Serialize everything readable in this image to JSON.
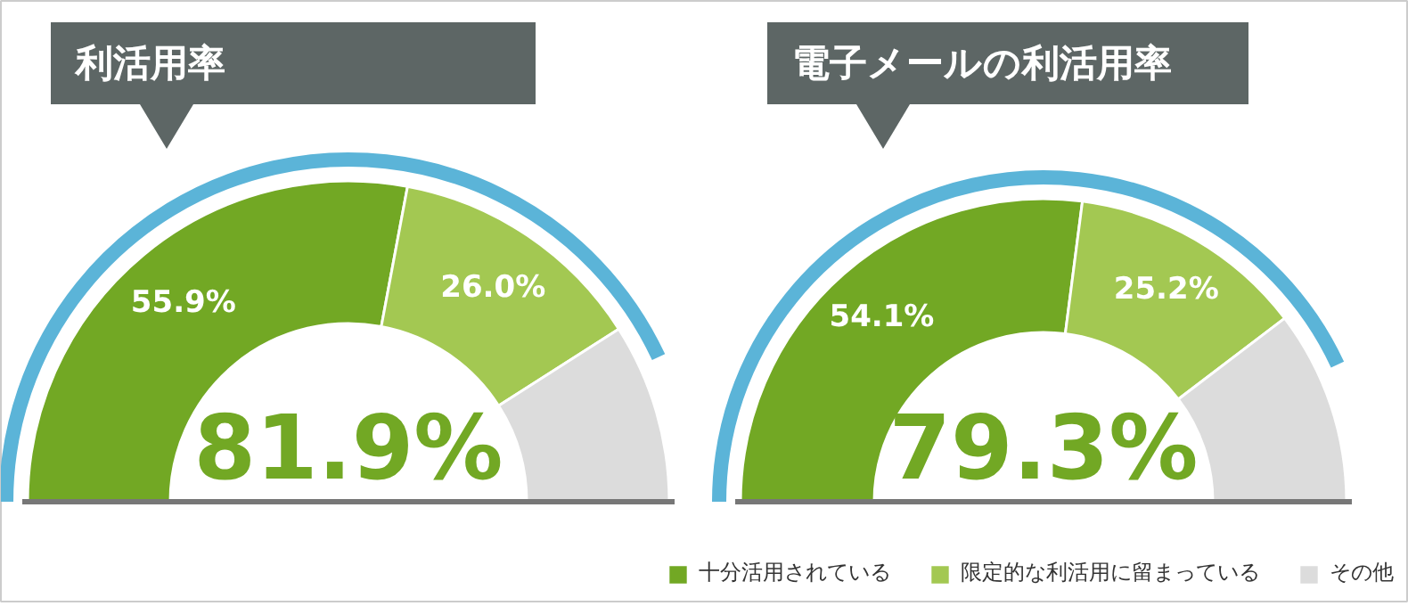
{
  "chart_data": [
    {
      "type": "donut",
      "title": "利活用率",
      "categories": [
        "十分活用されている",
        "限定的な利活用に留まっている",
        "その他"
      ],
      "values": [
        55.9,
        26.0,
        18.1
      ],
      "colors": [
        "#72a824",
        "#a3c852",
        "#dcdcdc"
      ],
      "value_labels": [
        "55.9%",
        "26.0%",
        null
      ],
      "annotations": [
        "81.9%"
      ],
      "legend": "bottom right"
    },
    {
      "type": "donut",
      "title": "電子メールの利活用率",
      "categories": [
        null,
        null,
        null
      ],
      "values": [
        54.1,
        25.2,
        20.7
      ],
      "colors": [
        "#72a824",
        "#a3c852",
        "#dcdcdc"
      ],
      "value_labels": [
        "54.1%",
        "25.2%",
        null
      ],
      "annotations": [
        "79.3%"
      ],
      "legend": false
    }
  ]
}
